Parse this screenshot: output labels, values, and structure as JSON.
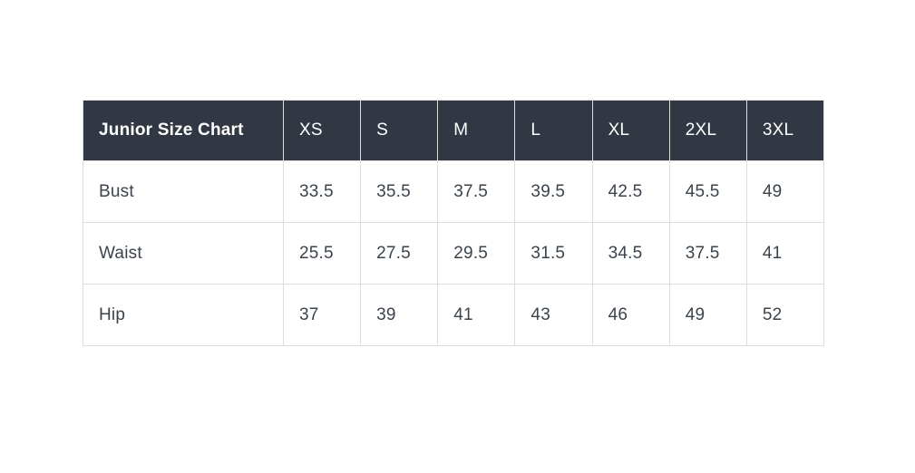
{
  "page": {
    "background": "#ffffff"
  },
  "colors": {
    "header_bg": "#313843",
    "header_text": "#ffffff",
    "body_text": "#3b434c",
    "border": "#dddddd",
    "row_bg": "#ffffff"
  },
  "chart_data": {
    "type": "table",
    "title": "Junior Size Chart",
    "columns": [
      "XS",
      "S",
      "M",
      "L",
      "XL",
      "2XL",
      "3XL"
    ],
    "rows": [
      {
        "label": "Bust",
        "values": [
          "33.5",
          "35.5",
          "37.5",
          "39.5",
          "42.5",
          "45.5",
          "49"
        ]
      },
      {
        "label": "Waist",
        "values": [
          "25.5",
          "27.5",
          "29.5",
          "31.5",
          "34.5",
          "37.5",
          "41"
        ]
      },
      {
        "label": "Hip",
        "values": [
          "37",
          "39",
          "41",
          "43",
          "46",
          "49",
          "52"
        ]
      }
    ],
    "layout": {
      "legend": "none",
      "grid": "cell-borders",
      "header_style": "dark"
    }
  }
}
